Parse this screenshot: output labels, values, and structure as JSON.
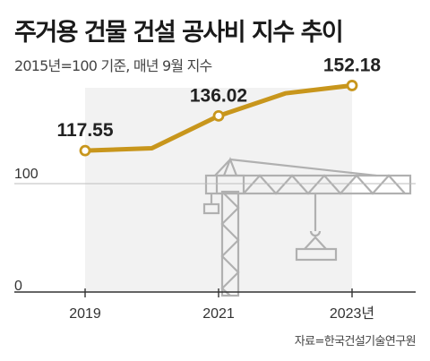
{
  "title": "주거용 건물 건설 공사비 지수 추이",
  "subtitle": "2015년=100 기준, 매년 9월 지수",
  "source": "자료=한국건설기술연구원",
  "colors": {
    "line": "#c8961c",
    "bg_panel": "#f2f2f2",
    "crane": "#b0b0b0",
    "grid": "#bdbdbd",
    "axis": "#333333"
  },
  "chart_data": {
    "type": "line",
    "title": "주거용 건물 건설 공사비 지수 추이",
    "subtitle": "2015년=100 기준, 매년 9월 지수",
    "x": [
      2019,
      2020,
      2021,
      2022,
      2023
    ],
    "y": [
      117.55,
      118.8,
      136.02,
      148.0,
      152.18
    ],
    "xtick_labels": [
      "2019",
      "2021",
      "2023년"
    ],
    "xtick_values": [
      2019,
      2021,
      2023
    ],
    "ytick_labels": [
      "0",
      "100"
    ],
    "ytick_values": [
      0,
      100
    ],
    "data_labels": [
      {
        "x": 2019,
        "text": "117.55"
      },
      {
        "x": 2021,
        "text": "136.02"
      },
      {
        "x": 2023,
        "text": "152.18"
      }
    ],
    "marked_points": [
      2019,
      2021,
      2023
    ],
    "ylim": [
      0,
      160
    ],
    "xlim": [
      2019,
      2023
    ],
    "grid": "reference line at 100",
    "xlabel": "",
    "ylabel": ""
  }
}
